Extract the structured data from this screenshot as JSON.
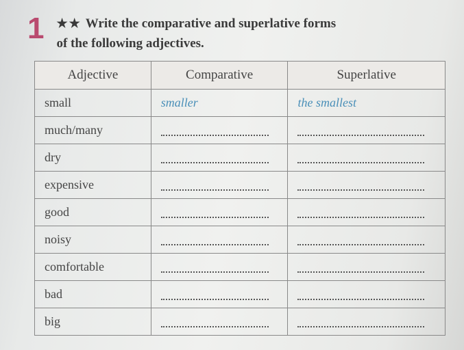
{
  "exercise": {
    "number": "1",
    "stars": "★★",
    "instruction_line1": "Write the comparative and superlative forms",
    "instruction_line2": "of the following adjectives."
  },
  "table": {
    "headers": {
      "adjective": "Adjective",
      "comparative": "Comparative",
      "superlative": "Superlative"
    },
    "columns": {
      "adj_width": 170,
      "comp_width": 200,
      "sup_width": 230
    },
    "rows": [
      {
        "adjective": "small",
        "comparative": "smaller",
        "superlative": "the smallest",
        "is_example": true
      },
      {
        "adjective": "much/many",
        "comparative": "",
        "superlative": "",
        "is_example": false
      },
      {
        "adjective": "dry",
        "comparative": "",
        "superlative": "",
        "is_example": false
      },
      {
        "adjective": "expensive",
        "comparative": "",
        "superlative": "",
        "is_example": false
      },
      {
        "adjective": "good",
        "comparative": "",
        "superlative": "",
        "is_example": false
      },
      {
        "adjective": "noisy",
        "comparative": "",
        "superlative": "",
        "is_example": false
      },
      {
        "adjective": "comfortable",
        "comparative": "",
        "superlative": "",
        "is_example": false
      },
      {
        "adjective": "bad",
        "comparative": "",
        "superlative": "",
        "is_example": false
      },
      {
        "adjective": "big",
        "comparative": "",
        "superlative": "",
        "is_example": false
      }
    ]
  },
  "styling": {
    "accent_color": "#b94a6f",
    "answer_color": "#4a8fb8",
    "text_color": "#3a3a3a",
    "border_color": "#888",
    "header_bg": "#eceae7",
    "body_bg": "#eceeea",
    "font_family": "Georgia, serif",
    "instruction_fontsize": 19,
    "cell_fontsize": 18,
    "number_fontsize": 44
  }
}
